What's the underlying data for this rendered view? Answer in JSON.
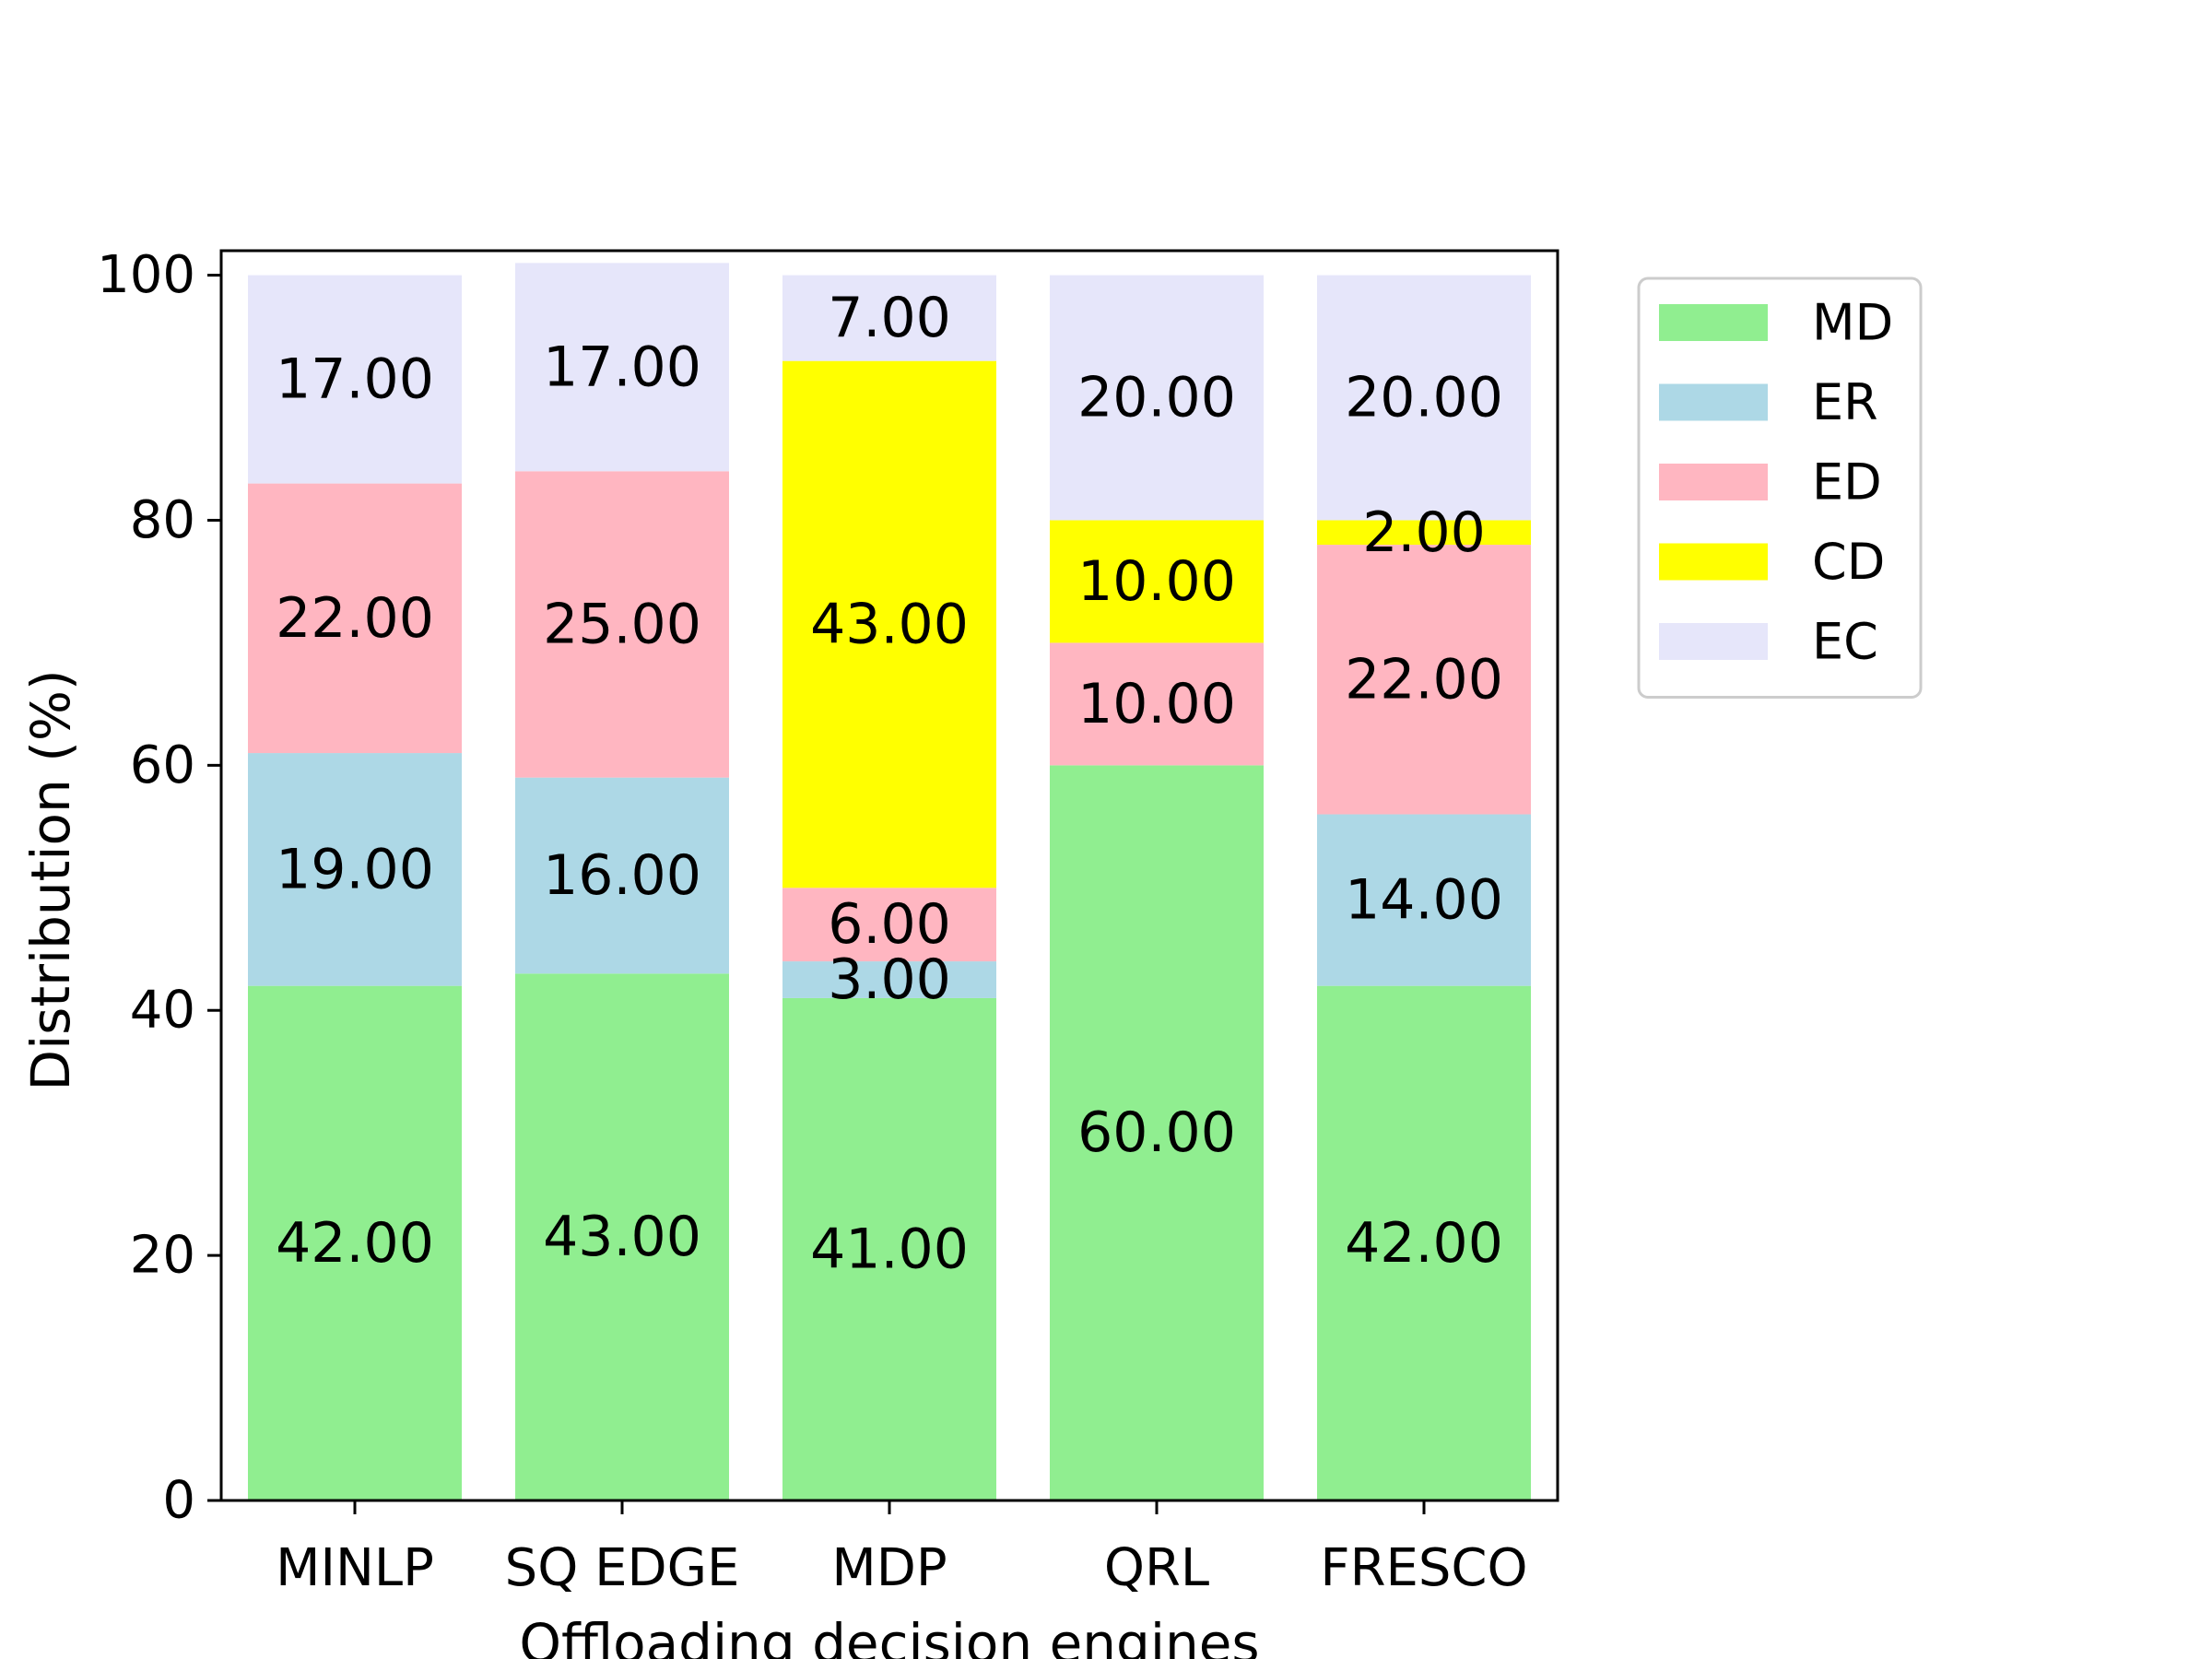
{
  "chart_data": {
    "type": "bar",
    "stacked": true,
    "title": "",
    "xlabel": "Offloading decision engines",
    "ylabel": "Distribution (%)",
    "ylim": [
      0,
      102
    ],
    "yticks": [
      0,
      20,
      40,
      60,
      80,
      100
    ],
    "grid": false,
    "legend_position": "outside-top-right",
    "categories": [
      "MINLP",
      "SQ EDGE",
      "MDP",
      "QRL",
      "FRESCO"
    ],
    "series": [
      {
        "name": "MD",
        "color": "#90ee90",
        "values": [
          42,
          43,
          41,
          60,
          42
        ],
        "labels": [
          "42.00",
          "43.00",
          "41.00",
          "60.00",
          "42.00"
        ]
      },
      {
        "name": "ER",
        "color": "#add8e6",
        "values": [
          19,
          16,
          3,
          0,
          14
        ],
        "labels": [
          "19.00",
          "16.00",
          "3.00",
          "",
          "14.00"
        ]
      },
      {
        "name": "ED",
        "color": "#ffb6c1",
        "values": [
          22,
          25,
          6,
          10,
          22
        ],
        "labels": [
          "22.00",
          "25.00",
          "6.00",
          "10.00",
          "22.00"
        ]
      },
      {
        "name": "CD",
        "color": "#ffff00",
        "values": [
          0,
          0,
          43,
          10,
          2
        ],
        "labels": [
          "",
          "",
          "43.00",
          "10.00",
          "2.00"
        ]
      },
      {
        "name": "EC",
        "color": "#e6e6fa",
        "values": [
          17,
          17,
          7,
          20,
          20
        ],
        "labels": [
          "17.00",
          "17.00",
          "7.00",
          "20.00",
          "20.00"
        ]
      }
    ]
  }
}
